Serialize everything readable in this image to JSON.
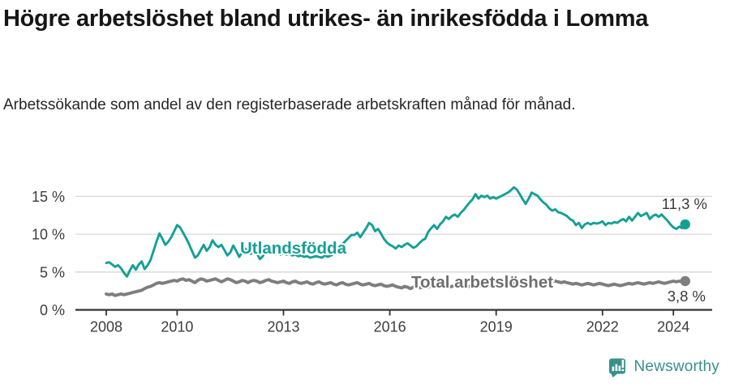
{
  "header": {
    "title": "Högre arbetslöshet bland utrikes- än inrikesfödda i Lomma",
    "subtitle": "Arbetssökande som andel av den registerbaserade arbetskraften månad för månad."
  },
  "chart_data": {
    "type": "line",
    "title": "Högre arbetslöshet bland utrikes- än inrikesfödda i Lomma",
    "subtitle": "Arbetssökande som andel av den registerbaserade arbetskraften månad för månad.",
    "unit": "%",
    "frequency": "monthly",
    "x_start": "2008-01",
    "x_end": "2024-05",
    "xticks": [
      2008,
      2010,
      2013,
      2016,
      2019,
      2022,
      2024
    ],
    "yticks": [
      {
        "value": 0,
        "label": "0 %"
      },
      {
        "value": 5,
        "label": "5 %"
      },
      {
        "value": 10,
        "label": "10 %"
      },
      {
        "value": 15,
        "label": "15 %"
      }
    ],
    "ylim": [
      0,
      16.5
    ],
    "grid": "horizontal",
    "legend": "inline-labels",
    "colors": {
      "axis": "#333333",
      "gridline": "#d8d8d8",
      "tick_text": "#3d3d3d",
      "value_label_text": "#3a3a3a"
    },
    "series": [
      {
        "name": "Utlandsfödda",
        "color": "#14a096",
        "label_color": "#14a096",
        "end_value": 11.3,
        "end_value_label": "11,3 %",
        "values": [
          6.2,
          6.3,
          6.0,
          5.7,
          5.9,
          5.5,
          4.9,
          4.4,
          5.2,
          5.9,
          5.3,
          6.0,
          6.4,
          5.4,
          5.9,
          6.6,
          7.8,
          9.0,
          10.1,
          9.4,
          8.6,
          9.0,
          9.6,
          10.4,
          11.2,
          10.9,
          10.2,
          9.5,
          8.7,
          7.8,
          6.9,
          7.2,
          7.9,
          8.6,
          7.8,
          8.3,
          9.2,
          8.6,
          8.3,
          8.6,
          7.9,
          7.2,
          7.6,
          8.5,
          7.8,
          7.0,
          7.6,
          8.1,
          7.7,
          7.4,
          7.8,
          7.5,
          6.7,
          7.1,
          7.8,
          8.1,
          7.6,
          7.4,
          7.7,
          7.3,
          7.5,
          7.3,
          7.4,
          7.2,
          7.3,
          7.1,
          7.2,
          7.0,
          7.1,
          6.9,
          7.0,
          7.1,
          7.0,
          6.9,
          7.2,
          7.0,
          7.2,
          7.4,
          7.7,
          8.2,
          8.7,
          9.1,
          9.5,
          9.9,
          9.9,
          10.2,
          9.6,
          10.2,
          10.8,
          11.5,
          11.2,
          10.4,
          10.7,
          10.1,
          9.4,
          8.9,
          8.6,
          8.4,
          8.1,
          8.5,
          8.3,
          8.6,
          8.8,
          8.5,
          8.2,
          8.4,
          8.8,
          9.2,
          9.4,
          10.3,
          10.8,
          11.2,
          10.7,
          11.3,
          11.7,
          12.3,
          12.0,
          12.4,
          12.6,
          12.3,
          12.8,
          13.2,
          13.7,
          14.2,
          14.6,
          15.3,
          14.7,
          15.1,
          14.9,
          15.1,
          14.7,
          14.9,
          14.7,
          14.9,
          15.1,
          15.3,
          15.5,
          15.8,
          16.2,
          15.9,
          15.3,
          14.6,
          14.0,
          14.7,
          15.5,
          15.3,
          15.1,
          14.6,
          14.2,
          13.9,
          13.4,
          13.1,
          13.3,
          12.9,
          12.8,
          12.6,
          12.4,
          12.0,
          11.8,
          11.2,
          11.5,
          10.8,
          11.3,
          11.5,
          11.3,
          11.5,
          11.4,
          11.5,
          11.7,
          11.2,
          11.5,
          11.4,
          11.6,
          11.5,
          11.8,
          12.0,
          11.7,
          12.3,
          11.8,
          12.3,
          12.8,
          12.4,
          12.6,
          12.8,
          12.0,
          12.4,
          12.6,
          12.3,
          12.6,
          12.2,
          11.8,
          11.3,
          10.9,
          10.7,
          11.0,
          10.8,
          11.3
        ]
      },
      {
        "name": "Total arbetslöshet",
        "color": "#7e7e7e",
        "label_color": "#6f6f6f",
        "end_value": 3.8,
        "end_value_label": "3,8 %",
        "values": [
          2.1,
          2.0,
          2.1,
          1.9,
          2.0,
          2.1,
          2.0,
          2.1,
          2.2,
          2.3,
          2.4,
          2.5,
          2.6,
          2.8,
          3.0,
          3.1,
          3.3,
          3.5,
          3.6,
          3.5,
          3.6,
          3.7,
          3.8,
          3.9,
          3.8,
          4.0,
          4.1,
          3.9,
          4.0,
          3.8,
          3.6,
          3.9,
          4.1,
          4.0,
          3.8,
          3.9,
          4.0,
          4.1,
          3.9,
          3.7,
          3.9,
          4.1,
          4.0,
          3.8,
          3.6,
          3.7,
          3.9,
          3.8,
          3.6,
          3.8,
          3.9,
          3.8,
          3.6,
          3.7,
          3.9,
          4.0,
          3.8,
          3.7,
          3.6,
          3.7,
          3.8,
          3.6,
          3.5,
          3.7,
          3.8,
          3.6,
          3.5,
          3.6,
          3.7,
          3.5,
          3.4,
          3.6,
          3.7,
          3.5,
          3.4,
          3.5,
          3.6,
          3.4,
          3.3,
          3.5,
          3.6,
          3.4,
          3.3,
          3.4,
          3.5,
          3.6,
          3.4,
          3.3,
          3.4,
          3.5,
          3.3,
          3.2,
          3.3,
          3.4,
          3.2,
          3.1,
          3.2,
          3.3,
          3.1,
          3.0,
          2.9,
          3.1,
          3.0,
          2.8,
          3.0,
          3.1,
          2.9,
          3.0,
          3.1,
          3.0,
          3.2,
          3.1,
          3.0,
          3.1,
          3.2,
          3.1,
          3.0,
          3.1,
          3.2,
          3.1,
          3.2,
          3.1,
          3.0,
          3.1,
          3.2,
          3.3,
          3.2,
          3.1,
          3.2,
          3.3,
          3.2,
          3.3,
          3.4,
          3.3,
          3.4,
          3.5,
          3.4,
          3.5,
          3.6,
          3.5,
          3.4,
          3.5,
          3.6,
          3.5,
          3.6,
          3.5,
          3.7,
          3.9,
          4.0,
          3.9,
          3.8,
          3.9,
          3.8,
          3.7,
          3.6,
          3.7,
          3.6,
          3.5,
          3.4,
          3.5,
          3.4,
          3.3,
          3.4,
          3.5,
          3.4,
          3.3,
          3.4,
          3.5,
          3.4,
          3.3,
          3.2,
          3.3,
          3.4,
          3.3,
          3.2,
          3.3,
          3.4,
          3.5,
          3.4,
          3.5,
          3.6,
          3.5,
          3.4,
          3.5,
          3.6,
          3.5,
          3.6,
          3.7,
          3.6,
          3.5,
          3.6,
          3.7,
          3.8,
          3.7,
          3.8,
          3.7,
          3.8
        ]
      }
    ]
  },
  "footer": {
    "brand": "Newsworthy",
    "brand_color": "#399089",
    "logo_icon": "bar-chart-speech-bubble"
  }
}
